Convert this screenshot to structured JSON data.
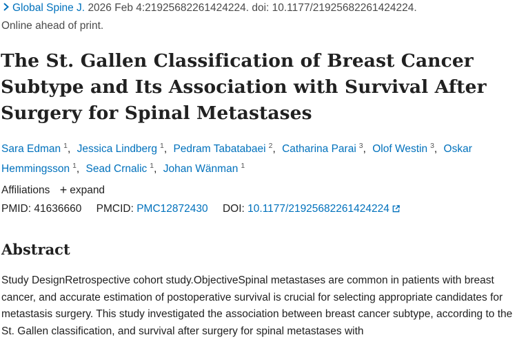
{
  "citation": {
    "journal": "Global Spine J.",
    "details": " 2026 Feb 4:21925682261424224. doi: 10.1177/21925682261424224."
  },
  "status": "Online ahead of print.",
  "title": "The St. Gallen Classification of Breast Cancer Subtype and Its Association with Survival After Surgery for Spinal Metastases",
  "authors": [
    {
      "name": "Sara Edman",
      "aff": "1"
    },
    {
      "name": "Jessica Lindberg",
      "aff": "1"
    },
    {
      "name": "Pedram Tabatabaei",
      "aff": "2"
    },
    {
      "name": "Catharina Parai",
      "aff": "3"
    },
    {
      "name": "Olof Westin",
      "aff": "3"
    },
    {
      "name": "Oskar Hemmingsson",
      "aff": "1"
    },
    {
      "name": "Sead Crnalic",
      "aff": "1"
    },
    {
      "name": "Johan Wänman",
      "aff": "1"
    }
  ],
  "affiliations": {
    "label": "Affiliations",
    "expand": "expand"
  },
  "ids": {
    "pmid_label": "PMID:",
    "pmid": "41636660",
    "pmcid_label": "PMCID:",
    "pmcid": "PMC12872430",
    "doi_label": "DOI:",
    "doi": "10.1177/21925682261424224"
  },
  "abstract": {
    "heading": "Abstract",
    "text": "Study DesignRetrospective cohort study.ObjectiveSpinal metastases are common in patients with breast cancer, and accurate estimation of postoperative survival is crucial for selecting appropriate candidates for metastasis surgery. This study investigated the association between breast cancer subtype, according to the St. Gallen classification, and survival after surgery for spinal metastases with"
  },
  "icons": {
    "citation": "chevron-right-icon",
    "external": "external-link-icon",
    "expand": "plus-icon"
  }
}
